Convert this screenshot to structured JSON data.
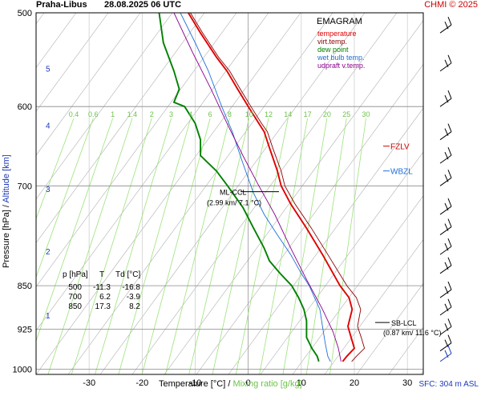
{
  "header": {
    "station": "Praha-Libus",
    "time": "28.08.2025 06 UTC",
    "credit": "CHMI © 2025"
  },
  "legend": {
    "title": "EMAGRAM",
    "items": [
      {
        "label": "temperature",
        "color": "#e00000"
      },
      {
        "label": "virt.temp.",
        "color": "#8b0000"
      },
      {
        "label": "dew point",
        "color": "#008000"
      },
      {
        "label": "wet bulb temp.",
        "color": "#1e6fd9"
      },
      {
        "label": "udpraft v.temp.",
        "color": "#8b008b"
      }
    ]
  },
  "markers": {
    "fzlv": "FZLV",
    "wbzl": "WBZL",
    "ml_ccl_label": "ML-CCL",
    "ml_ccl_value": "(2.99 km/ 7.1 °C)",
    "sb_lcl_label": "SB-LCL",
    "sb_lcl_value": "(0.87 km/ 11.6 °C)"
  },
  "table": {
    "headers": [
      "p [hPa]",
      "T",
      "Td [°C]"
    ],
    "rows": [
      [
        "500",
        "-11.3",
        "-16.8"
      ],
      [
        "700",
        "6.2",
        "-3.9"
      ],
      [
        "850",
        "17.3",
        "8.2"
      ]
    ]
  },
  "sfc_label": "SFC: 304 m ASL",
  "chart_data": {
    "type": "line",
    "xlabel": "Temperature [°C]",
    "xlabel_sep": "/",
    "xlabel2": "Mixing ratio [g/kg]",
    "ylabel": "Pressure [hPa]",
    "ylabel_sep": "/",
    "ylabel2": "Altitude [km]",
    "xlim": [
      -40,
      33
    ],
    "ylim": [
      1010,
      500
    ],
    "y_scale": "log",
    "x_ticks": [
      "-30",
      "-20",
      "-10",
      "0",
      "10",
      "20",
      "30"
    ],
    "p_ticks": [
      "500",
      "600",
      "700",
      "850",
      "925",
      "1000"
    ],
    "alt_ticks": [
      {
        "p": 557,
        "label": "5"
      },
      {
        "p": 622,
        "label": "4"
      },
      {
        "p": 704,
        "label": "3"
      },
      {
        "p": 795,
        "label": "2"
      },
      {
        "p": 900,
        "label": "1"
      }
    ],
    "mixing_ratio_labels": [
      "0.4",
      "0.6",
      "1",
      "1.4",
      "2",
      "3",
      "4",
      "6",
      "8",
      "10",
      "12",
      "14",
      "17",
      "20",
      "25",
      "30"
    ],
    "grid": true,
    "series": [
      {
        "name": "temperature",
        "color": "#e00000",
        "points": [
          [
            -11.3,
            500
          ],
          [
            -9,
            520
          ],
          [
            -6,
            545
          ],
          [
            -4,
            560
          ],
          [
            -2,
            580
          ],
          [
            0,
            600
          ],
          [
            2,
            620
          ],
          [
            3,
            630
          ],
          [
            4,
            650
          ],
          [
            5.5,
            680
          ],
          [
            6.2,
            700
          ],
          [
            8,
            725
          ],
          [
            11,
            760
          ],
          [
            14,
            800
          ],
          [
            17.3,
            850
          ],
          [
            19,
            870
          ],
          [
            19.6,
            890
          ],
          [
            18.8,
            920
          ],
          [
            19.4,
            940
          ],
          [
            20,
            960
          ],
          [
            18.6,
            975
          ],
          [
            17.8,
            985
          ]
        ]
      },
      {
        "name": "virt.temp.",
        "color": "#8b0000",
        "points": [
          [
            -10.9,
            500
          ],
          [
            -8.6,
            520
          ],
          [
            -5.6,
            545
          ],
          [
            -3.5,
            560
          ],
          [
            -1.5,
            580
          ],
          [
            0.5,
            600
          ],
          [
            2.5,
            620
          ],
          [
            3.6,
            630
          ],
          [
            4.6,
            650
          ],
          [
            6.2,
            680
          ],
          [
            6.9,
            700
          ],
          [
            8.8,
            725
          ],
          [
            11.9,
            760
          ],
          [
            15,
            800
          ],
          [
            18.6,
            850
          ],
          [
            20.4,
            870
          ],
          [
            21.2,
            890
          ],
          [
            20.6,
            920
          ],
          [
            21.3,
            940
          ],
          [
            21.9,
            960
          ],
          [
            20.4,
            975
          ],
          [
            19.5,
            985
          ]
        ]
      },
      {
        "name": "dew point",
        "color": "#008000",
        "points": [
          [
            -16.8,
            500
          ],
          [
            -16,
            530
          ],
          [
            -14,
            560
          ],
          [
            -13,
            580
          ],
          [
            -14,
            595
          ],
          [
            -12,
            600
          ],
          [
            -10,
            620
          ],
          [
            -9,
            640
          ],
          [
            -9,
            660
          ],
          [
            -6,
            680
          ],
          [
            -3.9,
            700
          ],
          [
            -1,
            730
          ],
          [
            1,
            760
          ],
          [
            3,
            790
          ],
          [
            4,
            810
          ],
          [
            6,
            830
          ],
          [
            8.2,
            850
          ],
          [
            9.5,
            870
          ],
          [
            10.5,
            890
          ],
          [
            11,
            910
          ],
          [
            11,
            940
          ],
          [
            12,
            960
          ],
          [
            13,
            975
          ],
          [
            13.3,
            985
          ]
        ]
      },
      {
        "name": "wet bulb temp.",
        "color": "#1e6fd9",
        "points": [
          [
            -12.8,
            500
          ],
          [
            -10,
            530
          ],
          [
            -7.5,
            560
          ],
          [
            -5,
            600
          ],
          [
            -3,
            630
          ],
          [
            -2,
            650
          ],
          [
            -1,
            670
          ],
          [
            0,
            690
          ],
          [
            1,
            710
          ],
          [
            3,
            740
          ],
          [
            5.5,
            770
          ],
          [
            8,
            800
          ],
          [
            10,
            830
          ],
          [
            11.5,
            850
          ],
          [
            12.5,
            870
          ],
          [
            13.5,
            890
          ],
          [
            14,
            920
          ],
          [
            14.5,
            950
          ],
          [
            15,
            975
          ],
          [
            15.5,
            985
          ]
        ]
      },
      {
        "name": "udpraft v.temp.",
        "color": "#8b008b",
        "points": [
          [
            -14,
            500
          ],
          [
            -10.5,
            540
          ],
          [
            -7,
            580
          ],
          [
            -4,
            620
          ],
          [
            -1,
            660
          ],
          [
            2,
            700
          ],
          [
            5,
            740
          ],
          [
            8,
            790
          ],
          [
            11,
            840
          ],
          [
            14,
            890
          ],
          [
            16,
            930
          ],
          [
            17,
            960
          ],
          [
            17.5,
            985
          ]
        ]
      }
    ],
    "wind_barbs": [
      {
        "p": 520
      },
      {
        "p": 560
      },
      {
        "p": 600
      },
      {
        "p": 640
      },
      {
        "p": 670
      },
      {
        "p": 700
      },
      {
        "p": 740
      },
      {
        "p": 770
      },
      {
        "p": 800
      },
      {
        "p": 830
      },
      {
        "p": 870
      },
      {
        "p": 900
      },
      {
        "p": 935
      },
      {
        "p": 965
      },
      {
        "p": 985
      }
    ]
  }
}
